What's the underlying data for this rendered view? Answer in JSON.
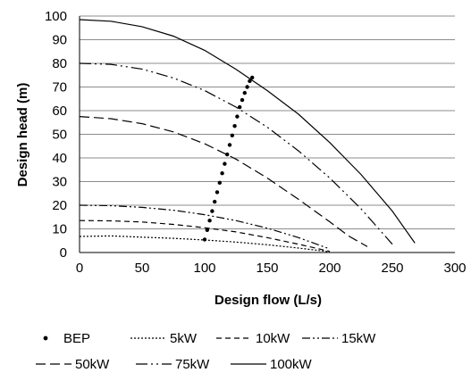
{
  "chart_data": {
    "type": "line",
    "title": "",
    "xlabel": "Design flow (L/s)",
    "ylabel": "Design head (m)",
    "xlim": [
      0,
      300
    ],
    "ylim": [
      0,
      100
    ],
    "xticks": [
      0,
      50,
      100,
      150,
      200,
      250,
      300
    ],
    "yticks": [
      0,
      10,
      20,
      30,
      40,
      50,
      60,
      70,
      80,
      90,
      100
    ],
    "grid": "horizontal",
    "legend_position": "bottom",
    "series": [
      {
        "name": "BEP",
        "style": "dots",
        "color": "#000000",
        "x": [
          100,
          102,
          104,
          106,
          108,
          110,
          112,
          114,
          116,
          118,
          120,
          122,
          124,
          126,
          128,
          130,
          132,
          134,
          136,
          138
        ],
        "y": [
          5.5,
          9.5,
          13.5,
          17.5,
          21.5,
          25.5,
          29.5,
          33.5,
          37.5,
          41.5,
          45.5,
          49.5,
          53.5,
          57.5,
          61.5,
          64.5,
          67.5,
          70,
          72.5,
          74
        ]
      },
      {
        "name": "5kW",
        "style": "dotted",
        "color": "#000000",
        "x": [
          0,
          25,
          50,
          75,
          100,
          125,
          150,
          175,
          200
        ],
        "y": [
          6.8,
          7,
          6.5,
          6,
          5.3,
          4.4,
          3.3,
          1.9,
          0.3
        ]
      },
      {
        "name": "10kW",
        "style": "dashed",
        "color": "#000000",
        "x": [
          0,
          25,
          50,
          75,
          100,
          125,
          150,
          175,
          200
        ],
        "y": [
          13.5,
          13.4,
          12.9,
          11.9,
          10.5,
          8.7,
          6.3,
          3.5,
          0.5
        ]
      },
      {
        "name": "15kW",
        "style": "dash-dot-dot",
        "color": "#000000",
        "x": [
          0,
          25,
          50,
          75,
          100,
          125,
          150,
          175,
          200
        ],
        "y": [
          20,
          19.8,
          19.1,
          17.9,
          16,
          13.5,
          10.3,
          6.3,
          1.5
        ]
      },
      {
        "name": "50kW",
        "style": "long-dash",
        "color": "#000000",
        "x": [
          0,
          25,
          50,
          75,
          100,
          125,
          150,
          175,
          200,
          215,
          230
        ],
        "y": [
          57.5,
          56.6,
          54.5,
          51,
          46,
          39.5,
          31.5,
          22.5,
          13,
          7,
          2.5
        ]
      },
      {
        "name": "75kW",
        "style": "long-dash-dot-dot",
        "color": "#000000",
        "x": [
          0,
          25,
          50,
          75,
          100,
          125,
          150,
          175,
          200,
          225,
          250
        ],
        "y": [
          80,
          79.6,
          77.6,
          73.8,
          68.5,
          61.5,
          53,
          43,
          31.5,
          18.5,
          3.5
        ]
      },
      {
        "name": "100kW",
        "style": "solid",
        "color": "#000000",
        "x": [
          0,
          25,
          50,
          75,
          100,
          125,
          150,
          175,
          200,
          225,
          250,
          268
        ],
        "y": [
          98.5,
          97.8,
          95.5,
          91.5,
          85.5,
          77.5,
          68.5,
          58.5,
          46.5,
          33,
          17.5,
          4
        ]
      }
    ]
  },
  "legend": {
    "rows": [
      [
        "BEP",
        "5kW",
        "10kW",
        "15kW"
      ],
      [
        "50kW",
        "75kW",
        "100kW"
      ]
    ]
  }
}
